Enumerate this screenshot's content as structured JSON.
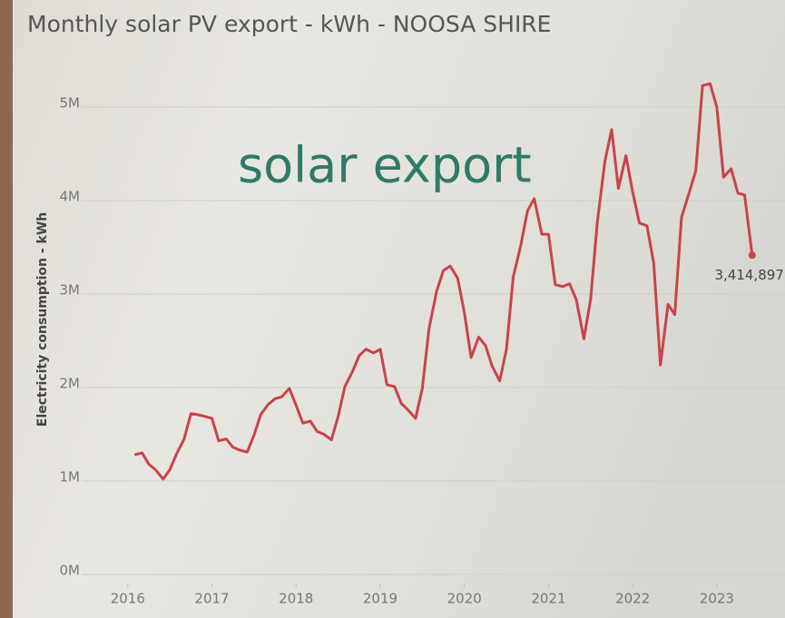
{
  "chart_data": {
    "type": "line",
    "title": "Monthly solar PV export - kWh - NOOSA SHIRE",
    "overlay_text": "solar export",
    "y_label": "Electricity consumption - kWh",
    "x": [
      2016.08,
      2016.17,
      2016.25,
      2016.33,
      2016.42,
      2016.5,
      2016.58,
      2016.67,
      2016.75,
      2016.83,
      2016.92,
      2017.0,
      2017.08,
      2017.17,
      2017.25,
      2017.33,
      2017.42,
      2017.5,
      2017.58,
      2017.67,
      2017.75,
      2017.83,
      2017.92,
      2018.0,
      2018.08,
      2018.17,
      2018.25,
      2018.33,
      2018.42,
      2018.5,
      2018.58,
      2018.67,
      2018.75,
      2018.83,
      2018.92,
      2019.0,
      2019.08,
      2019.17,
      2019.25,
      2019.33,
      2019.42,
      2019.5,
      2019.58,
      2019.67,
      2019.75,
      2019.83,
      2019.92,
      2020.0,
      2020.08,
      2020.17,
      2020.25,
      2020.33,
      2020.42,
      2020.5,
      2020.58,
      2020.67,
      2020.75,
      2020.83,
      2020.92,
      2021.0,
      2021.08,
      2021.17,
      2021.25,
      2021.33,
      2021.42,
      2021.5,
      2021.58,
      2021.67,
      2021.75,
      2021.83,
      2021.92,
      2022.0,
      2022.08,
      2022.17,
      2022.25,
      2022.33,
      2022.42,
      2022.5,
      2022.58,
      2022.67,
      2022.75,
      2022.83,
      2022.92,
      2023.0,
      2023.08,
      2023.17,
      2023.25,
      2023.33,
      2023.42
    ],
    "series": [
      {
        "name": "solar export",
        "color": "#c8444a",
        "values": [
          1280000,
          1300000,
          1180000,
          1120000,
          1020000,
          1120000,
          1290000,
          1450000,
          1720000,
          1710000,
          1690000,
          1670000,
          1430000,
          1450000,
          1360000,
          1330000,
          1310000,
          1490000,
          1710000,
          1820000,
          1880000,
          1900000,
          1990000,
          1810000,
          1620000,
          1640000,
          1530000,
          1500000,
          1440000,
          1690000,
          2010000,
          2170000,
          2340000,
          2410000,
          2370000,
          2410000,
          2030000,
          2010000,
          1830000,
          1760000,
          1670000,
          1990000,
          2630000,
          3030000,
          3250000,
          3300000,
          3170000,
          2800000,
          2320000,
          2540000,
          2450000,
          2230000,
          2070000,
          2410000,
          3180000,
          3520000,
          3890000,
          4020000,
          3640000,
          3640000,
          3100000,
          3080000,
          3110000,
          2940000,
          2520000,
          2940000,
          3770000,
          4420000,
          4760000,
          4130000,
          4480000,
          4090000,
          3760000,
          3730000,
          3330000,
          2240000,
          2890000,
          2780000,
          3820000,
          4080000,
          4320000,
          5230000,
          5250000,
          5000000,
          4250000,
          4340000,
          4080000,
          4060000,
          3414897
        ],
        "value_labels": [
          null,
          null,
          null,
          null,
          null,
          null,
          null,
          null,
          null,
          null,
          null,
          null,
          null,
          null,
          null,
          null,
          null,
          null,
          null,
          null,
          null,
          null,
          null,
          null,
          null,
          null,
          null,
          null,
          null,
          null,
          null,
          null,
          null,
          null,
          null,
          null,
          null,
          null,
          null,
          null,
          null,
          null,
          null,
          null,
          null,
          null,
          null,
          null,
          null,
          null,
          null,
          null,
          null,
          null,
          null,
          null,
          null,
          null,
          null,
          null,
          null,
          null,
          null,
          null,
          null,
          null,
          null,
          null,
          null,
          null,
          null,
          null,
          null,
          null,
          null,
          null,
          null,
          null,
          null,
          null,
          null,
          null,
          null,
          null,
          null,
          null,
          null,
          null,
          "3,414,897"
        ]
      }
    ],
    "xlim": [
      2015.56,
      2023.81
    ],
    "xticks": [
      2016,
      2017,
      2018,
      2019,
      2020,
      2021,
      2022,
      2023
    ],
    "ylim": [
      0,
      5500000
    ],
    "yticks": [
      {
        "value": 0,
        "label": "0M"
      },
      {
        "value": 1000000,
        "label": "1M"
      },
      {
        "value": 2000000,
        "label": "2M"
      },
      {
        "value": 3000000,
        "label": "3M"
      },
      {
        "value": 4000000,
        "label": "4M"
      },
      {
        "value": 5000000,
        "label": "5M"
      }
    ],
    "grid": true
  }
}
